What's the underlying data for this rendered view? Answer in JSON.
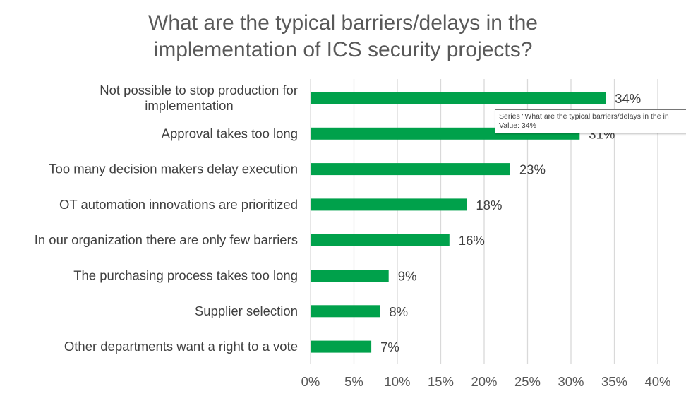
{
  "chart_data": {
    "type": "bar",
    "orientation": "horizontal",
    "title_lines": [
      "What are the typical barriers/delays in the",
      "implementation of ICS security projects?"
    ],
    "categories": [
      [
        "Not possible to stop production for",
        "implementation"
      ],
      [
        "Approval takes too long"
      ],
      [
        "Too many decision makers delay execution"
      ],
      [
        "OT automation innovations are prioritized"
      ],
      [
        "In our organization there are only few barriers"
      ],
      [
        "The purchasing process takes too long"
      ],
      [
        "Supplier selection"
      ],
      [
        "Other departments want a right to a vote"
      ]
    ],
    "values": [
      34,
      31,
      23,
      18,
      16,
      9,
      8,
      7
    ],
    "value_suffix": "%",
    "xlim": [
      0,
      40
    ],
    "x_ticks": [
      0,
      5,
      10,
      15,
      20,
      25,
      30,
      35,
      40
    ],
    "grid": "vertical",
    "bar_color": "#00A14B",
    "grid_color": "#D9D9D9",
    "tooltip": {
      "line1": "Series \"What are the typical barriers/delays in the in",
      "line2": "Value: 34%"
    }
  }
}
